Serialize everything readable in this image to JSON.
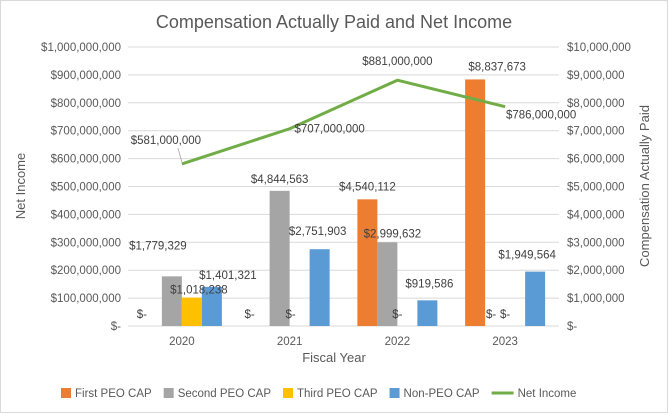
{
  "chart_data": {
    "type": "bar",
    "title": "Compensation Actually Paid and Net Income",
    "xlabel": "Fiscal Year",
    "ylabel_left": "Net Income",
    "ylabel_right": "Compensation Actually Paid",
    "categories": [
      "2020",
      "2021",
      "2022",
      "2023"
    ],
    "ylim_left": [
      0,
      1000000000
    ],
    "ylim_right": [
      0,
      10000000
    ],
    "left_ticks": [
      "$-",
      "$100,000,000",
      "$200,000,000",
      "$300,000,000",
      "$400,000,000",
      "$500,000,000",
      "$600,000,000",
      "$700,000,000",
      "$800,000,000",
      "$900,000,000",
      "$1,000,000,000"
    ],
    "right_ticks": [
      "$-",
      "$1,000,000",
      "$2,000,000",
      "$3,000,000",
      "$4,000,000",
      "$5,000,000",
      "$6,000,000",
      "$7,000,000",
      "$8,000,000",
      "$9,000,000",
      "$10,000,000"
    ],
    "grid": true,
    "legend_position": "bottom",
    "series": [
      {
        "name": "First PEO CAP",
        "type": "bar",
        "axis": "right",
        "color": "#ed7d31",
        "values": [
          null,
          null,
          4540112,
          8837673
        ],
        "labels": [
          "$-",
          "$-",
          "$4,540,112",
          "$8,837,673"
        ]
      },
      {
        "name": "Second PEO CAP",
        "type": "bar",
        "axis": "right",
        "color": "#a5a5a5",
        "values": [
          1779329,
          4844563,
          2999632,
          null
        ],
        "labels": [
          "$1,779,329",
          "$4,844,563",
          "$2,999,632",
          "$-"
        ]
      },
      {
        "name": "Third PEO CAP",
        "type": "bar",
        "axis": "right",
        "color": "#ffc000",
        "values": [
          1018238,
          null,
          null,
          null
        ],
        "labels": [
          "$1,018,238",
          "$-",
          "$-",
          "$-"
        ]
      },
      {
        "name": "Non-PEO CAP",
        "type": "bar",
        "axis": "right",
        "color": "#5b9bd5",
        "values": [
          1401321,
          2751903,
          919586,
          1949564
        ],
        "labels": [
          "$1,401,321",
          "$2,751,903",
          "$919,586",
          "$1,949,564"
        ]
      },
      {
        "name": "Net Income",
        "type": "line",
        "axis": "left",
        "color": "#70ad47",
        "values": [
          581000000,
          707000000,
          881000000,
          786000000
        ],
        "labels": [
          "$581,000,000",
          "$707,000,000",
          "$881,000,000",
          "$786,000,000"
        ]
      }
    ]
  }
}
